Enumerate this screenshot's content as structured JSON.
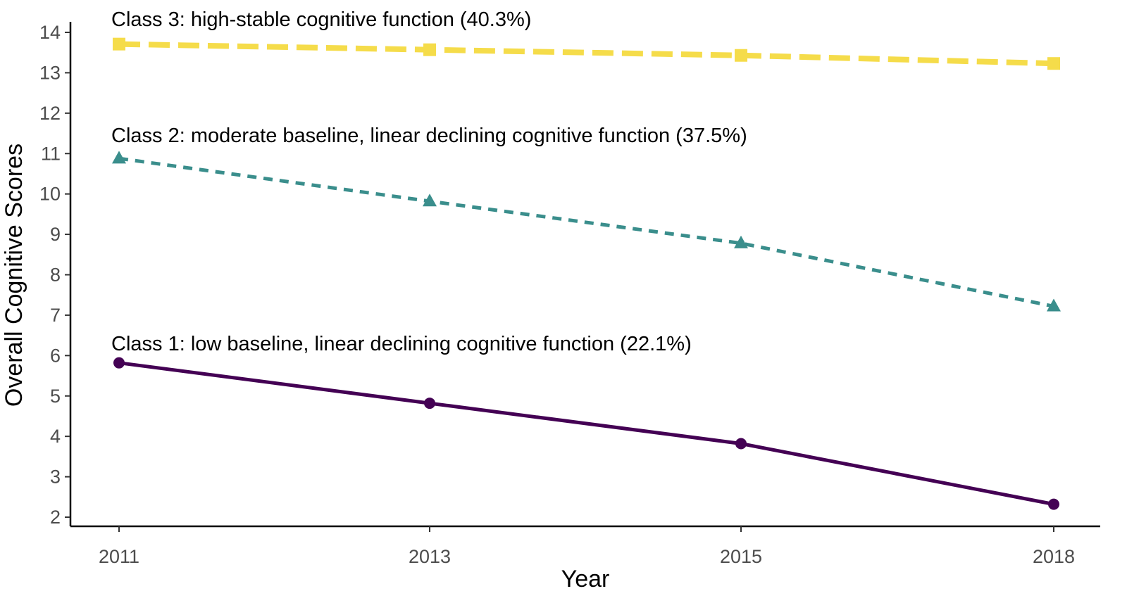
{
  "chart_data": {
    "type": "line",
    "x": [
      "2011",
      "2013",
      "2015",
      "2018"
    ],
    "xlabel": "Year",
    "ylabel": "Overall Cognitive Scores",
    "ylim": [
      1.8,
      14.3
    ],
    "yticks": [
      "2",
      "3",
      "4",
      "5",
      "6",
      "7",
      "8",
      "9",
      "10",
      "11",
      "12",
      "13",
      "14"
    ],
    "grid": false,
    "legend": "none",
    "series": [
      {
        "id": "class1",
        "values": [
          5.82,
          4.82,
          3.82,
          2.32
        ],
        "color": "#440154",
        "line_style": "solid",
        "marker": "circle",
        "annotation": "Class 1: low baseline, linear declining cognitive function (22.1%)"
      },
      {
        "id": "class2",
        "values": [
          10.88,
          9.82,
          8.78,
          7.22
        ],
        "color": "#3a8e8c",
        "line_style": "dotted",
        "marker": "triangle",
        "annotation": "Class 2: moderate baseline, linear declining cognitive function (37.5%)"
      },
      {
        "id": "class3",
        "values": [
          13.71,
          13.57,
          13.43,
          13.23
        ],
        "color": "#f5dc4a",
        "line_style": "dashed",
        "marker": "square",
        "annotation": "Class 3: high-stable cognitive function (40.3%)"
      }
    ]
  }
}
